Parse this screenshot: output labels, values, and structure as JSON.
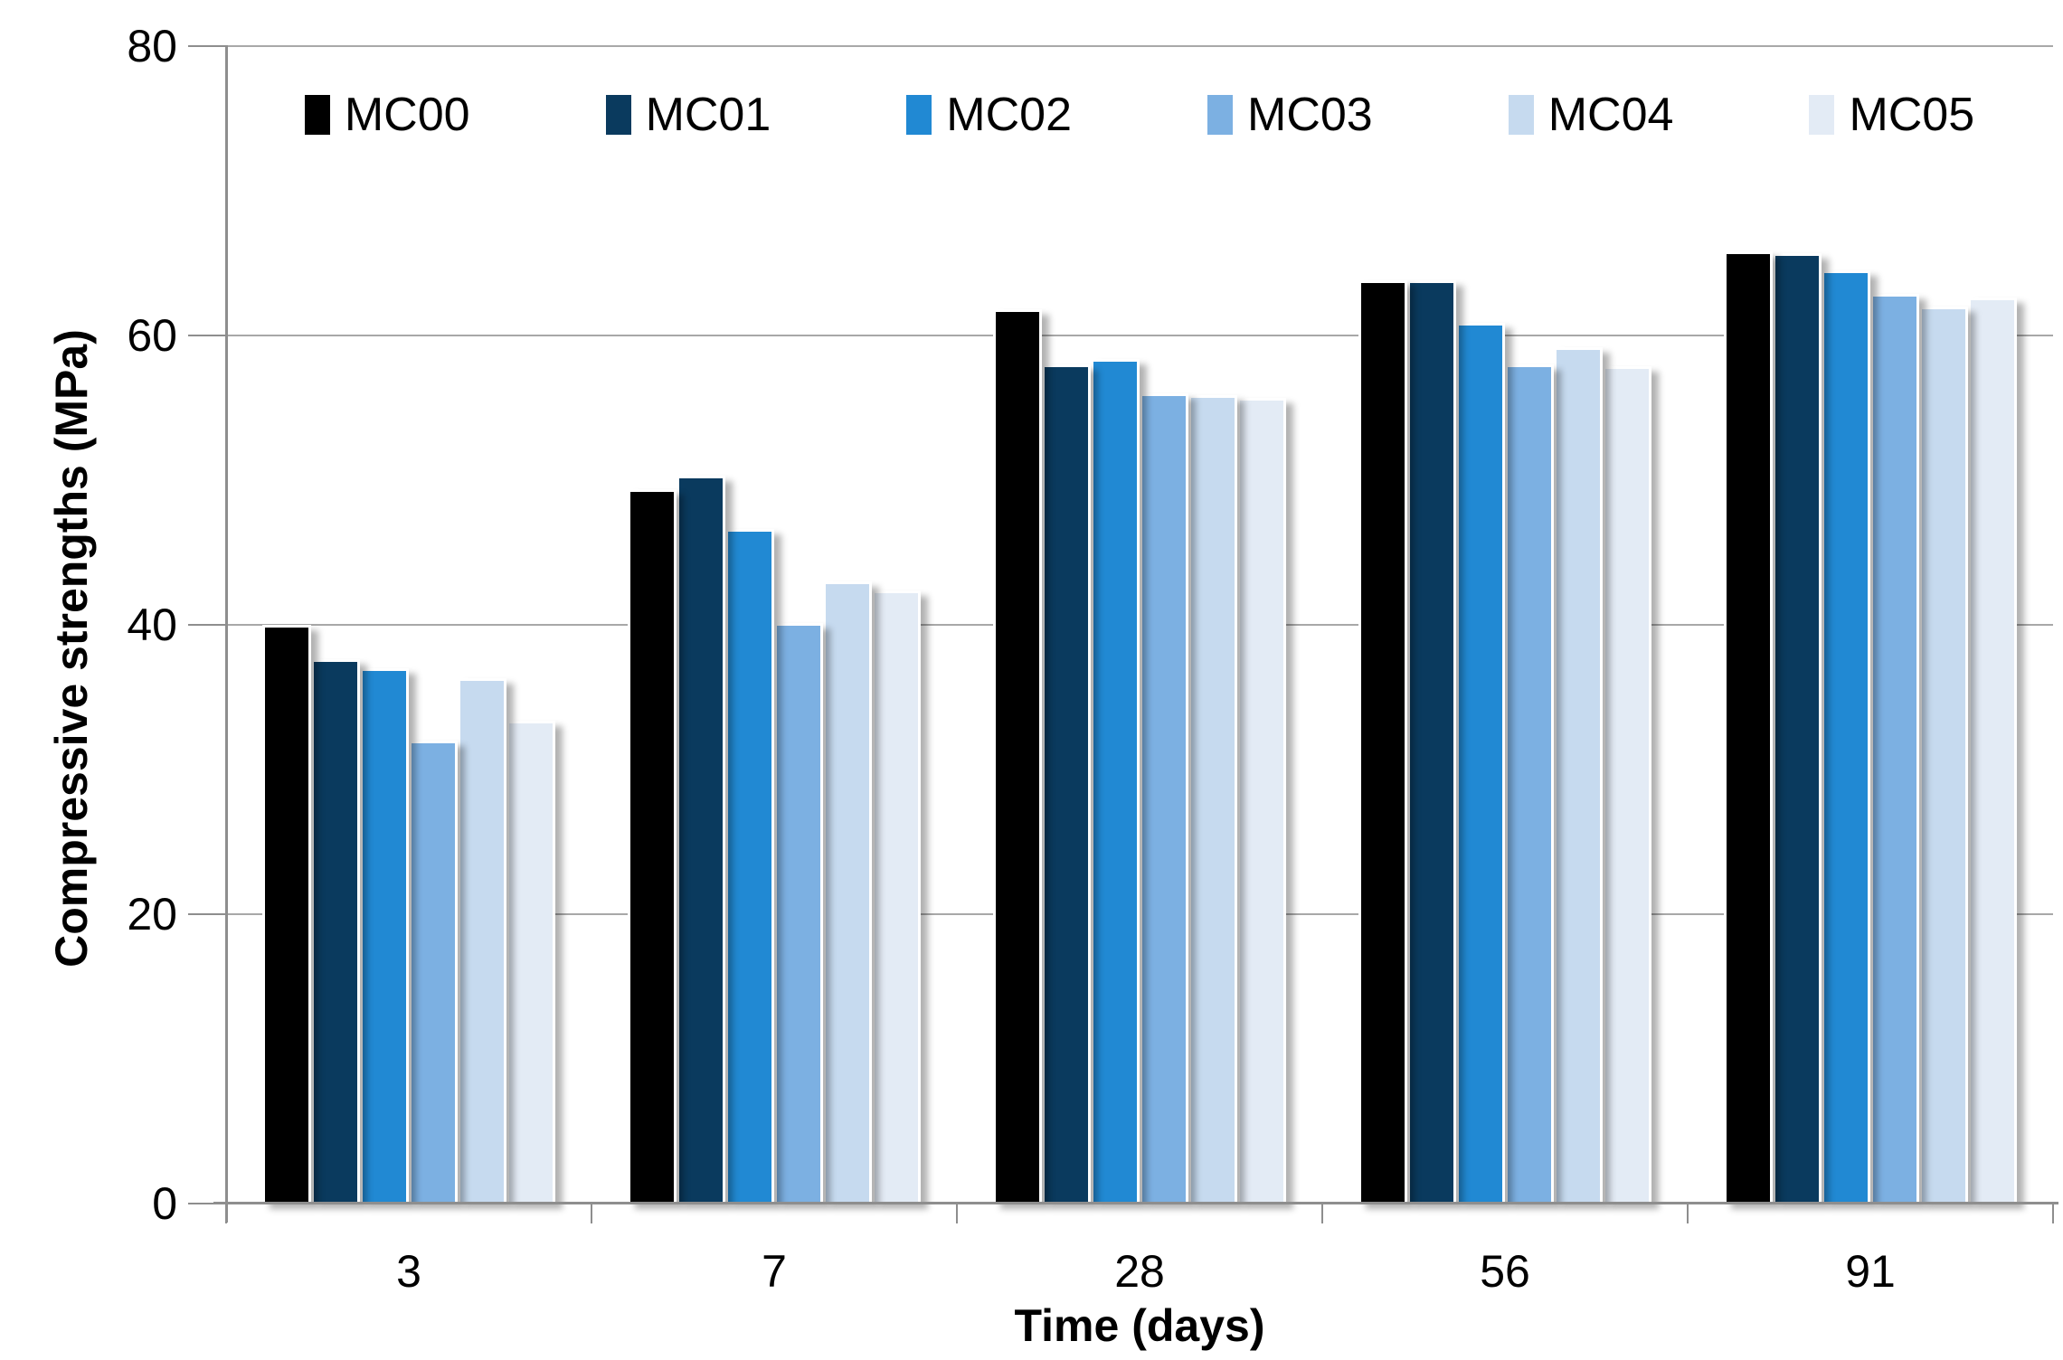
{
  "chart_data": {
    "type": "bar",
    "title": "",
    "xlabel": "Time (days)",
    "ylabel": "Compressive strengths (MPa)",
    "categories": [
      "3",
      "7",
      "28",
      "56",
      "91"
    ],
    "yticks": [
      0,
      20,
      40,
      60,
      80
    ],
    "ylim": [
      0,
      80
    ],
    "grid": "horizontal gridlines every 20",
    "legend_position": "top-inside-horizontal",
    "series": [
      {
        "name": "MC00",
        "color": "#000000",
        "values": [
          40.0,
          49.4,
          61.8,
          63.8,
          65.8
        ]
      },
      {
        "name": "MC01",
        "color": "#0A3A5E",
        "values": [
          37.6,
          50.3,
          58.0,
          63.8,
          65.7
        ]
      },
      {
        "name": "MC02",
        "color": "#2189D3",
        "values": [
          37.0,
          46.6,
          58.4,
          60.9,
          64.5
        ]
      },
      {
        "name": "MC03",
        "color": "#7CB0E2",
        "values": [
          32.0,
          40.1,
          56.0,
          58.0,
          62.9
        ]
      },
      {
        "name": "MC04",
        "color": "#C6DAEF",
        "values": [
          36.3,
          43.0,
          55.9,
          59.2,
          62.0
        ]
      },
      {
        "name": "MC05",
        "color": "#E3EBF5",
        "values": [
          33.4,
          42.4,
          55.7,
          57.9,
          62.6
        ]
      }
    ],
    "colors": {
      "gridline": "#A8A8A8",
      "axis": "#8E8E8E",
      "text": "#000000",
      "background": "#FFFFFF"
    }
  }
}
